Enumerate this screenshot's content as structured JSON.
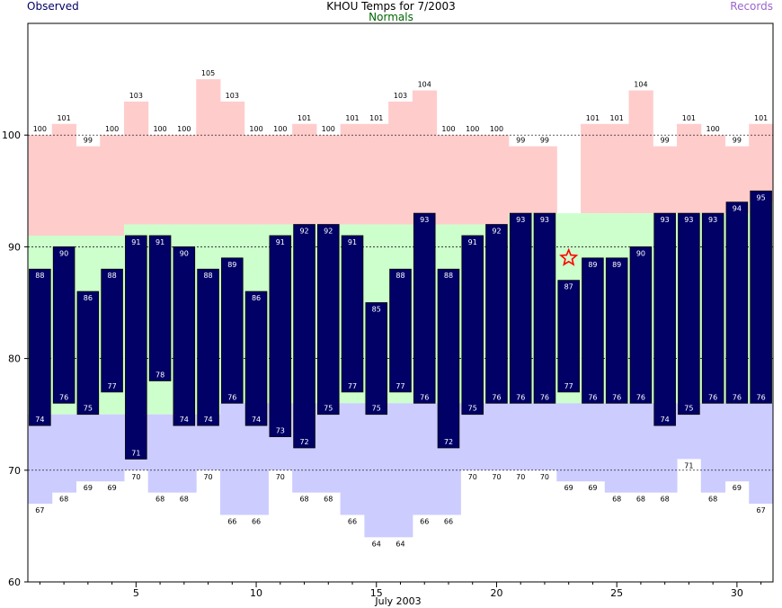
{
  "page": {
    "title": "KHOU Temps for 7/2003",
    "legend": {
      "observed": "Observed",
      "normals": "Normals",
      "records": "Records"
    }
  },
  "colors": {
    "observed": "#000066",
    "normals": "#ccffcc",
    "record_high": "#ffcccc",
    "record_low": "#ccccff",
    "legend_observed": "#000066",
    "legend_normals": "#006600",
    "legend_records": "#9966cc",
    "missing_marker": "#ff0000"
  },
  "chart_data": {
    "type": "bar",
    "title": "KHOU Temps for 7/2003",
    "xlabel": "July 2003",
    "ylabel": "",
    "xlim": [
      0.5,
      31.5
    ],
    "ylim": [
      60,
      110
    ],
    "x_ticks": [
      5,
      10,
      15,
      20,
      25,
      30
    ],
    "y_ticks": [
      60,
      70,
      80,
      90,
      100
    ],
    "dashed_gridlines": [
      70,
      80,
      90,
      100
    ],
    "legend_position": "top",
    "days": [
      1,
      2,
      3,
      4,
      5,
      6,
      7,
      8,
      9,
      10,
      11,
      12,
      13,
      14,
      15,
      16,
      17,
      18,
      19,
      20,
      21,
      22,
      23,
      24,
      25,
      26,
      27,
      28,
      29,
      30,
      31
    ],
    "observed_high": [
      88,
      90,
      86,
      88,
      91,
      91,
      90,
      88,
      89,
      86,
      91,
      92,
      92,
      91,
      85,
      88,
      93,
      88,
      91,
      92,
      93,
      93,
      87,
      89,
      89,
      90,
      93,
      93,
      93,
      94,
      95
    ],
    "observed_low": [
      74,
      76,
      75,
      77,
      71,
      78,
      74,
      74,
      76,
      74,
      73,
      72,
      75,
      77,
      75,
      77,
      76,
      72,
      75,
      76,
      76,
      76,
      77,
      76,
      76,
      76,
      74,
      75,
      76,
      76,
      76
    ],
    "normal_high": [
      91,
      91,
      91,
      91,
      92,
      92,
      92,
      92,
      92,
      92,
      92,
      92,
      92,
      92,
      92,
      92,
      92,
      92,
      92,
      92,
      93,
      93,
      93,
      93,
      93,
      93,
      93,
      93,
      93,
      93,
      94
    ],
    "normal_low": [
      75,
      75,
      75,
      75,
      75,
      75,
      75,
      75,
      76,
      76,
      76,
      76,
      76,
      76,
      76,
      76,
      76,
      76,
      76,
      76,
      76,
      76,
      76,
      76,
      76,
      76,
      76,
      76,
      76,
      76,
      76
    ],
    "record_high": [
      100,
      101,
      99,
      100,
      103,
      100,
      100,
      105,
      103,
      100,
      100,
      101,
      100,
      101,
      101,
      103,
      104,
      100,
      100,
      100,
      99,
      99,
      null,
      101,
      101,
      104,
      99,
      101,
      100,
      99,
      101
    ],
    "record_low": [
      67,
      68,
      69,
      69,
      70,
      68,
      68,
      70,
      66,
      66,
      70,
      68,
      68,
      66,
      64,
      64,
      66,
      66,
      70,
      70,
      70,
      70,
      69,
      69,
      68,
      68,
      68,
      71,
      68,
      69,
      67
    ],
    "missing_day_marker": {
      "day": 23,
      "value": 89,
      "symbol": "star"
    }
  }
}
